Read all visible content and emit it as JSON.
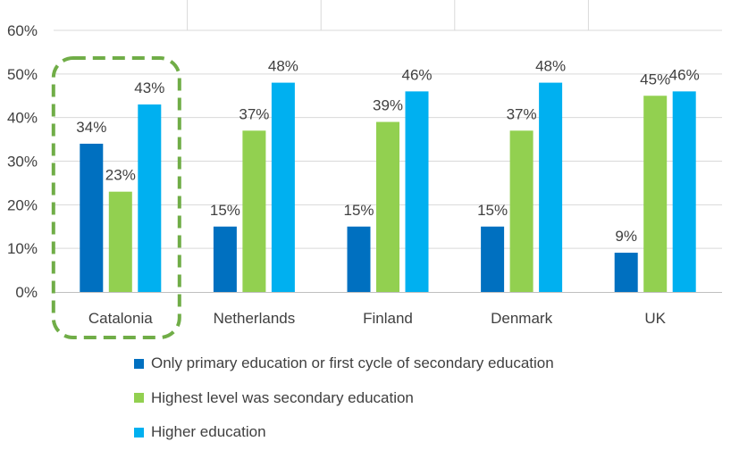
{
  "chart_data": {
    "type": "bar",
    "categories": [
      "Catalonia",
      "Netherlands",
      "Finland",
      "Denmark",
      "UK"
    ],
    "series": [
      {
        "name": "Only primary education or first cycle of secondary education",
        "values": [
          34,
          15,
          15,
          15,
          9
        ],
        "labels": [
          "34%",
          "15%",
          "15%",
          "15%",
          "9%"
        ],
        "color": "#0070C0"
      },
      {
        "name": "Highest level was secondary education",
        "values": [
          23,
          37,
          39,
          37,
          45
        ],
        "labels": [
          "23%",
          "37%",
          "39%",
          "37%",
          "45%"
        ],
        "color": "#92D050"
      },
      {
        "name": "Higher education",
        "values": [
          43,
          48,
          46,
          48,
          46
        ],
        "labels": [
          "43%",
          "48%",
          "46%",
          "48%",
          "46%"
        ],
        "color": "#00B0F0"
      }
    ],
    "ylim": [
      0,
      60
    ],
    "yticks": [
      0,
      10,
      20,
      30,
      40,
      50,
      60
    ],
    "ytick_labels": [
      "0%",
      "10%",
      "20%",
      "30%",
      "40%",
      "50%",
      "60%"
    ],
    "grid": true,
    "legend_position": "bottom",
    "highlight": {
      "category": "Catalonia",
      "style": "dashed-rounded-box",
      "color": "#70AD47"
    }
  }
}
